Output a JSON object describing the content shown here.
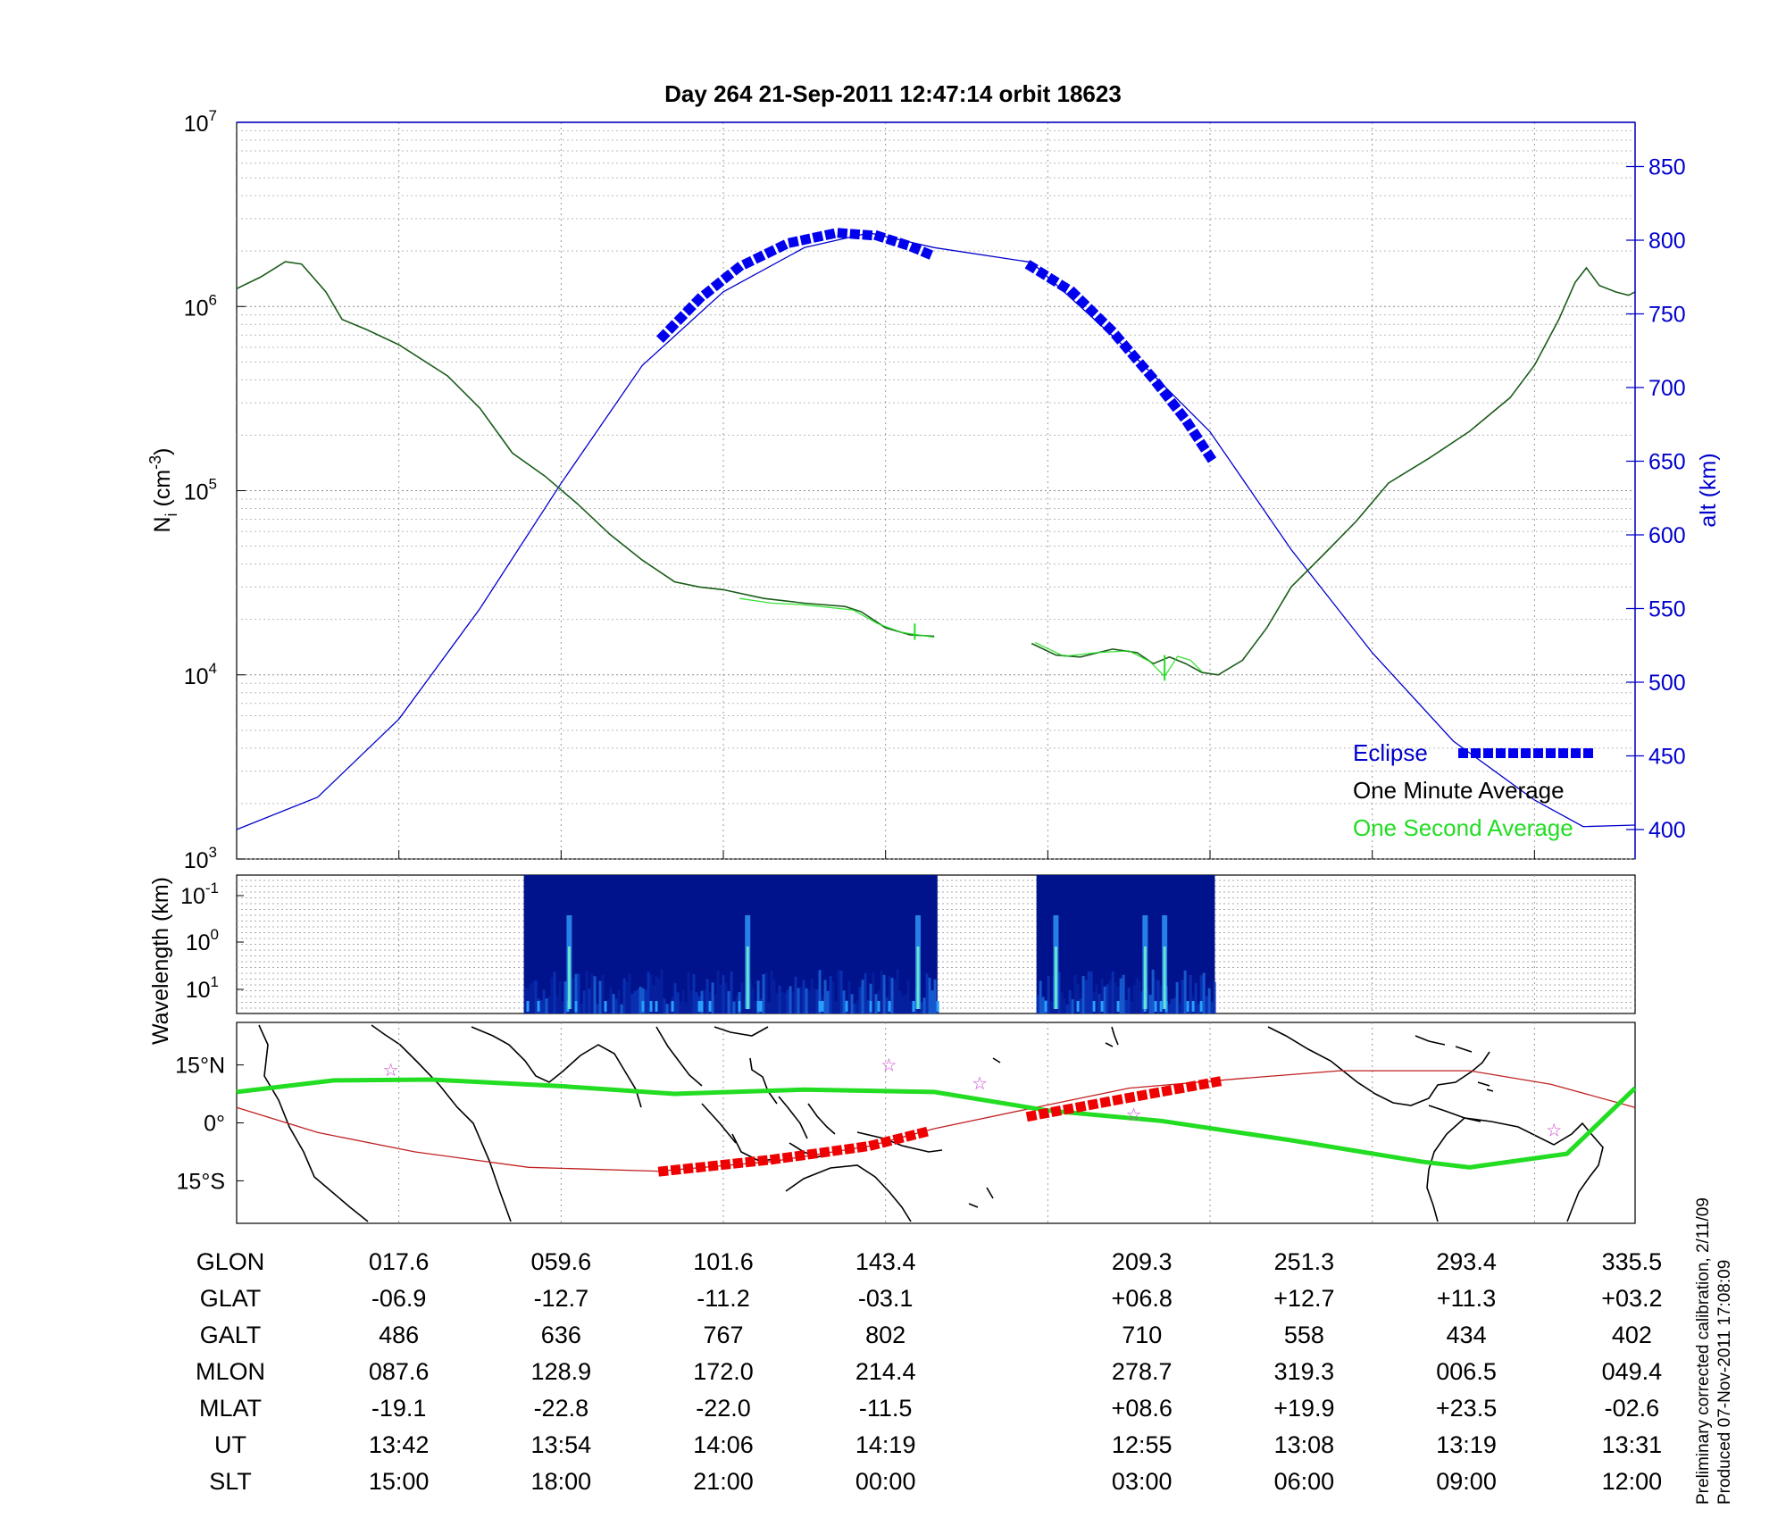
{
  "title": "Day 264  21-Sep-2011 12:47:14   orbit 18623",
  "side_notes": [
    "Preliminary corrected calibration, 2/11/09",
    "Produced 07-Nov-2011 17:08:09"
  ],
  "colors": {
    "density": "#1a5c1a",
    "density_1s": "#22e022",
    "altitude": "#0000cc",
    "eclipse": "#0000ee",
    "orbit_eclipse": "#ee0000",
    "track": "#22dd22",
    "trajectory": "#c02020",
    "star": "#cc44cc"
  },
  "chart_data": [
    {
      "type": "line",
      "panel": "density",
      "ylabel": "N_i (cm^-3)",
      "y_scale": "log",
      "ylim": [
        1000,
        10000000
      ],
      "y_ticks": [
        {
          "base": "10",
          "exp": "3"
        },
        {
          "base": "10",
          "exp": "4"
        },
        {
          "base": "10",
          "exp": "5"
        },
        {
          "base": "10",
          "exp": "6"
        },
        {
          "base": "10",
          "exp": "7"
        }
      ],
      "right_axis": {
        "label": "alt (km)",
        "ylim": [
          380,
          880
        ],
        "ticks": [
          "400",
          "450",
          "500",
          "550",
          "600",
          "650",
          "700",
          "750",
          "800",
          "850"
        ]
      },
      "xlim": [
        0,
        8.62
      ],
      "legend": {
        "position": "bottom-right",
        "entries": [
          "Eclipse",
          "One Minute Average",
          "One Second Average"
        ]
      },
      "series": [
        {
          "name": "One Minute Average",
          "segments": [
            [
              [
                0,
                1250000
              ],
              [
                0.15,
                1450000
              ],
              [
                0.3,
                1750000
              ],
              [
                0.4,
                1700000
              ],
              [
                0.55,
                1200000
              ],
              [
                0.65,
                850000
              ],
              [
                0.8,
                750000
              ],
              [
                1.0,
                620000
              ],
              [
                1.3,
                420000
              ],
              [
                1.5,
                280000
              ],
              [
                1.7,
                160000
              ],
              [
                1.9,
                120000
              ],
              [
                2.1,
                85000
              ],
              [
                2.3,
                58000
              ],
              [
                2.5,
                42000
              ],
              [
                2.7,
                32000
              ],
              [
                2.85,
                30000
              ],
              [
                3.0,
                29000
              ],
              [
                3.25,
                26000
              ],
              [
                3.5,
                24500
              ],
              [
                3.75,
                23500
              ],
              [
                3.85,
                22000
              ],
              [
                4.0,
                18000
              ],
              [
                4.15,
                16500
              ],
              [
                4.3,
                16200
              ]
            ],
            [
              [
                4.9,
                14800
              ],
              [
                5.05,
                12800
              ],
              [
                5.2,
                12500
              ],
              [
                5.4,
                13800
              ],
              [
                5.55,
                13200
              ],
              [
                5.65,
                11500
              ],
              [
                5.75,
                12500
              ],
              [
                5.85,
                11500
              ],
              [
                5.95,
                10300
              ],
              [
                6.05,
                10000
              ],
              [
                6.2,
                12000
              ],
              [
                6.35,
                18000
              ],
              [
                6.5,
                30000
              ],
              [
                6.7,
                45000
              ],
              [
                6.9,
                68000
              ],
              [
                7.1,
                110000
              ],
              [
                7.35,
                150000
              ],
              [
                7.6,
                210000
              ],
              [
                7.85,
                320000
              ],
              [
                8.0,
                480000
              ],
              [
                8.15,
                850000
              ],
              [
                8.25,
                1350000
              ],
              [
                8.32,
                1620000
              ],
              [
                8.4,
                1300000
              ],
              [
                8.5,
                1200000
              ],
              [
                8.58,
                1150000
              ],
              [
                8.62,
                1200000
              ]
            ]
          ]
        },
        {
          "name": "One Second Average",
          "segments": [
            [
              [
                3.1,
                26000
              ],
              [
                3.3,
                24500
              ],
              [
                3.5,
                24000
              ],
              [
                3.8,
                22500
              ],
              [
                3.95,
                19000
              ],
              [
                4.1,
                17000
              ],
              [
                4.3,
                16000
              ]
            ],
            [
              [
                4.92,
                15000
              ],
              [
                5.1,
                12600
              ],
              [
                5.3,
                13200
              ],
              [
                5.5,
                13500
              ],
              [
                5.63,
                11800
              ],
              [
                5.72,
                9800
              ],
              [
                5.8,
                12600
              ],
              [
                5.88,
                12000
              ],
              [
                5.95,
                10400
              ]
            ]
          ],
          "spikes": [
            [
              4.18,
              15500,
              19000
            ],
            [
              5.72,
              9300,
              12800
            ]
          ]
        },
        {
          "name": "alt (km)",
          "axis": "right",
          "points": [
            [
              0,
              400
            ],
            [
              0.5,
              422
            ],
            [
              1.0,
              475
            ],
            [
              1.5,
              550
            ],
            [
              2.0,
              635
            ],
            [
              2.5,
              715
            ],
            [
              3.0,
              765
            ],
            [
              3.5,
              795
            ],
            [
              3.9,
              805
            ],
            [
              4.3,
              795
            ],
            [
              4.9,
              785
            ],
            [
              5.5,
              725
            ],
            [
              6.0,
              670
            ],
            [
              6.5,
              590
            ],
            [
              7.0,
              520
            ],
            [
              7.5,
              460
            ],
            [
              8.0,
              420
            ],
            [
              8.3,
              402
            ],
            [
              8.62,
              403
            ]
          ]
        },
        {
          "name": "Eclipse",
          "segments": [
            [
              [
                2.63,
                735
              ],
              [
                2.85,
                760
              ],
              [
                3.1,
                782
              ],
              [
                3.4,
                798
              ],
              [
                3.7,
                805
              ],
              [
                3.95,
                803
              ],
              [
                4.15,
                796
              ],
              [
                4.28,
                790
              ]
            ],
            [
              [
                4.9,
                782
              ],
              [
                5.15,
                765
              ],
              [
                5.4,
                738
              ],
              [
                5.65,
                706
              ],
              [
                5.85,
                678
              ],
              [
                6.0,
                653
              ]
            ]
          ]
        }
      ]
    },
    {
      "type": "heatmap",
      "panel": "spectrogram",
      "ylabel": "Wavelength (km)",
      "y_ticks": [
        {
          "base": "10",
          "exp": "-1"
        },
        {
          "base": "10",
          "exp": "0"
        },
        {
          "base": "10",
          "exp": "1"
        }
      ],
      "xlim": [
        0,
        8.62
      ],
      "blocks": [
        [
          1.77,
          4.32
        ],
        [
          4.93,
          6.03
        ]
      ],
      "bright_columns": [
        2.05,
        3.15,
        4.2,
        5.05,
        5.6,
        5.72
      ]
    },
    {
      "type": "line",
      "panel": "ground_track",
      "y_ticks": [
        "15°N",
        "0°",
        "15°S"
      ],
      "ylim": [
        -26,
        26
      ],
      "xlim": [
        0,
        8.62
      ],
      "series": [
        {
          "name": "magnetic_equator",
          "points": [
            [
              0,
              8
            ],
            [
              0.6,
              11
            ],
            [
              1.2,
              11.2
            ],
            [
              2,
              9.5
            ],
            [
              2.7,
              7.5
            ],
            [
              3.5,
              8.6
            ],
            [
              4.3,
              8
            ],
            [
              5.0,
              3.2
            ],
            [
              5.7,
              0.5
            ],
            [
              6.5,
              -4.5
            ],
            [
              7.3,
              -10
            ],
            [
              7.6,
              -11.5
            ],
            [
              8.2,
              -8
            ],
            [
              8.62,
              9
            ]
          ]
        },
        {
          "name": "trajectory",
          "points": [
            [
              0,
              4
            ],
            [
              0.5,
              -2.5
            ],
            [
              1.1,
              -7.5
            ],
            [
              1.8,
              -11.5
            ],
            [
              2.6,
              -12.5
            ],
            [
              3.3,
              -10
            ],
            [
              3.9,
              -6
            ],
            [
              4.3,
              -1.5
            ],
            [
              4.9,
              3.8
            ],
            [
              5.5,
              9
            ],
            [
              6.2,
              11.5
            ],
            [
              6.8,
              13.5
            ],
            [
              7.6,
              13.5
            ],
            [
              8.1,
              10
            ],
            [
              8.62,
              4
            ]
          ]
        },
        {
          "name": "eclipse_track",
          "segments": [
            [
              [
                2.63,
                -12.5
              ],
              [
                3.3,
                -9.5
              ],
              [
                3.9,
                -6
              ],
              [
                4.28,
                -2
              ]
            ],
            [
              [
                4.9,
                1.8
              ],
              [
                5.5,
                6.5
              ],
              [
                6.05,
                10.7
              ]
            ]
          ]
        }
      ],
      "stars": [
        [
          0.95,
          13.8
        ],
        [
          4.02,
          15
        ],
        [
          4.58,
          10.3
        ],
        [
          5.53,
          2.2
        ],
        [
          8.12,
          -1.8
        ]
      ]
    }
  ],
  "x_table": {
    "rows": [
      "GLON",
      "GLAT",
      "GALT",
      "MLON",
      "MLAT",
      "UT",
      "SLT"
    ],
    "columns": [
      {
        "x": 1,
        "values": [
          "017.6",
          "-06.9",
          "486",
          "087.6",
          "-19.1",
          "13:42",
          "15:00"
        ]
      },
      {
        "x": 2,
        "values": [
          "059.6",
          "-12.7",
          "636",
          "128.9",
          "-22.8",
          "13:54",
          "18:00"
        ]
      },
      {
        "x": 3,
        "values": [
          "101.6",
          "-11.2",
          "767",
          "172.0",
          "-22.0",
          "14:06",
          "21:00"
        ]
      },
      {
        "x": 4,
        "values": [
          "143.4",
          "-03.1",
          "802",
          "214.4",
          "-11.5",
          "14:19",
          "00:00"
        ]
      },
      {
        "x": 5.58,
        "values": [
          "209.3",
          "+06.8",
          "710",
          "278.7",
          "+08.6",
          "12:55",
          "03:00"
        ]
      },
      {
        "x": 6.58,
        "values": [
          "251.3",
          "+12.7",
          "558",
          "319.3",
          "+19.9",
          "13:08",
          "06:00"
        ]
      },
      {
        "x": 7.58,
        "values": [
          "293.4",
          "+11.3",
          "434",
          "006.5",
          "+23.5",
          "13:19",
          "09:00"
        ]
      },
      {
        "x": 8.6,
        "values": [
          "335.5",
          "+03.2",
          "402",
          "049.4",
          "-02.6",
          "13:31",
          "12:00"
        ]
      }
    ]
  }
}
